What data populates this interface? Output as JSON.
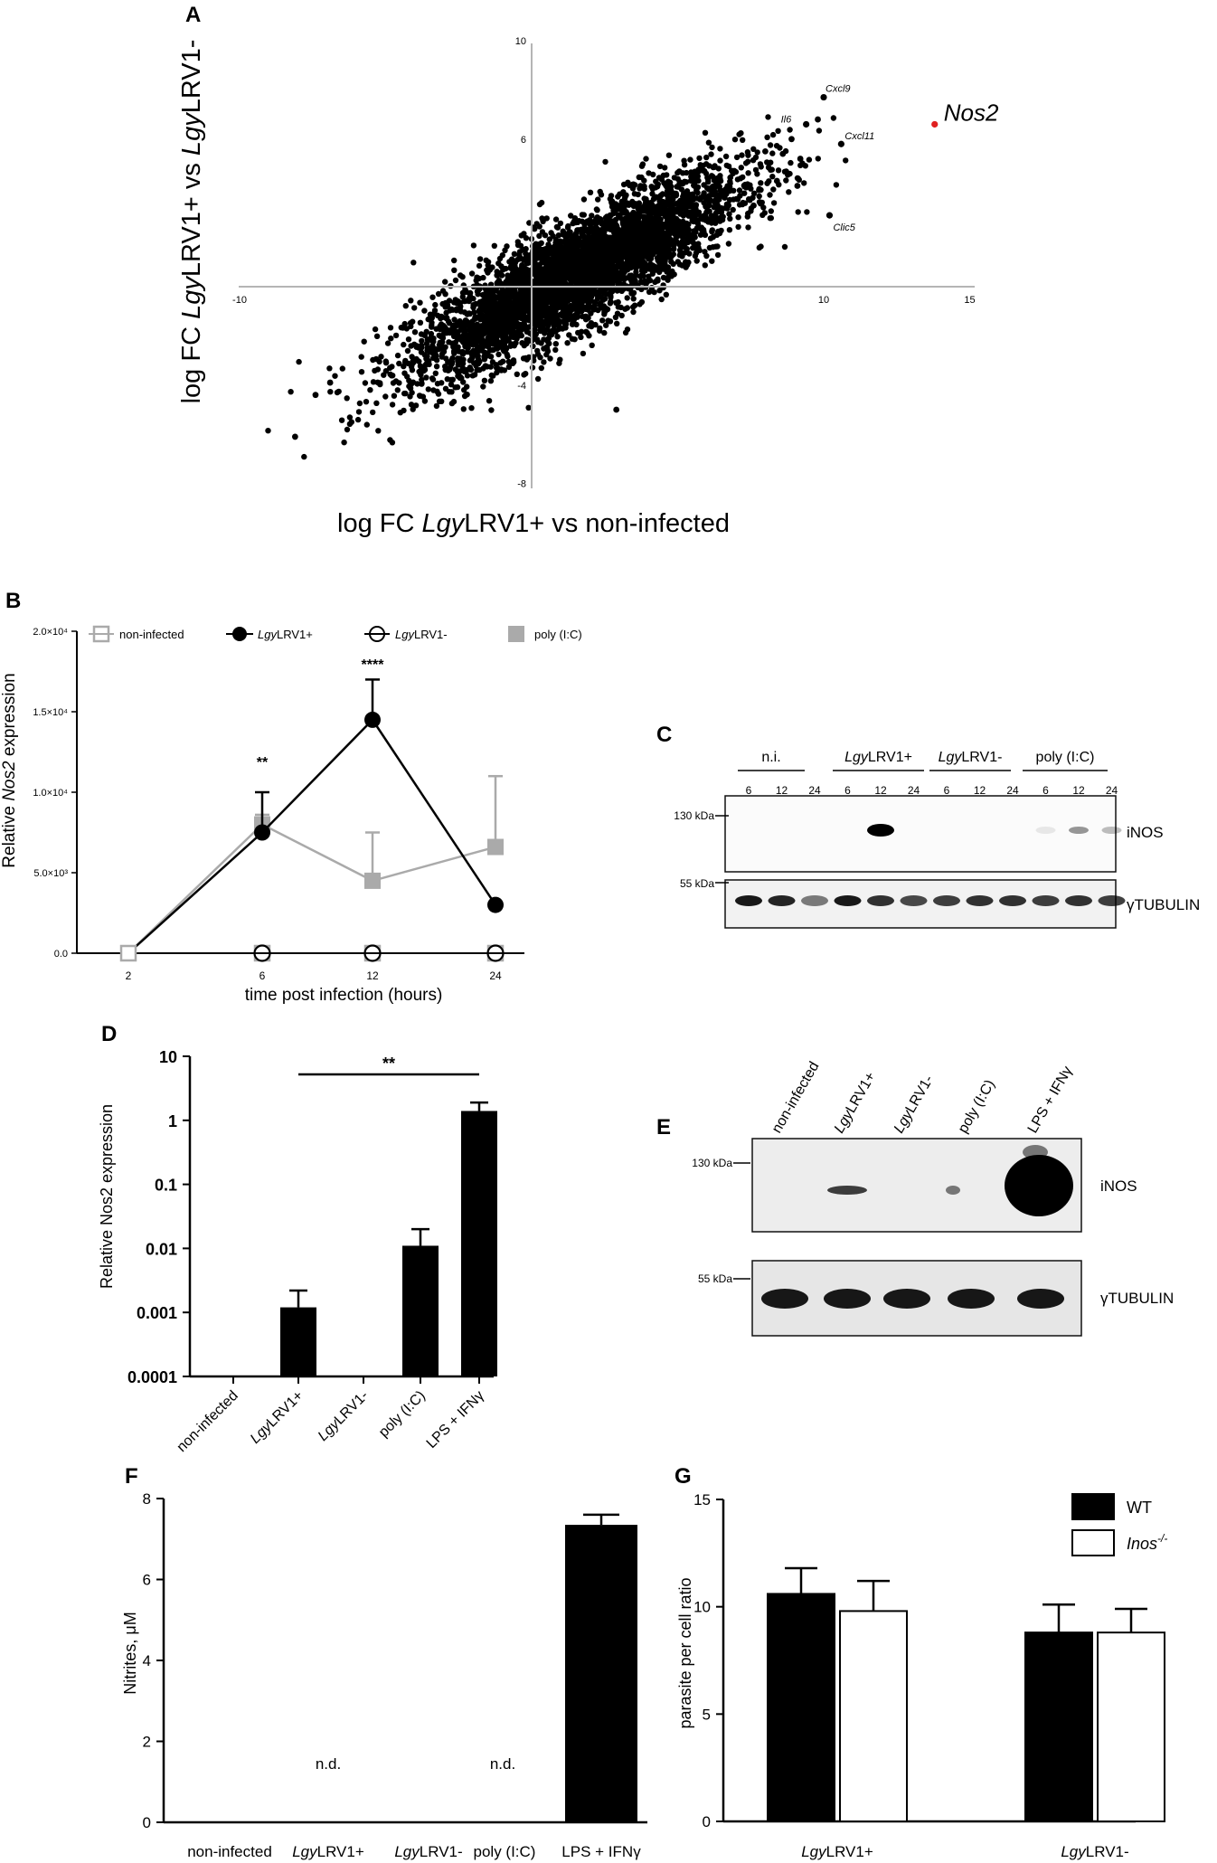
{
  "panel_labels": {
    "A": "A",
    "B": "B",
    "C": "C",
    "D": "D",
    "E": "E",
    "F": "F",
    "G": "G"
  },
  "chart_data": [
    {
      "panel": "A",
      "type": "scatter",
      "xlabel": "log FC LgyLRV1+ vs non-infected",
      "ylabel": "log FC LgyLRV1+ vs LgyLRV1-",
      "xlim": [
        -10,
        15
      ],
      "ylim": [
        -8,
        10
      ],
      "x_ticks": [
        -10,
        10,
        15
      ],
      "y_ticks": [
        -8,
        -4,
        6,
        10
      ],
      "cloud": {
        "slope": 0.62,
        "center": [
          1.5,
          0.5
        ],
        "spread_x": 2.8,
        "spread_resid": 1.1,
        "count": 4200
      },
      "labeled_points": [
        {
          "label": "Nos2",
          "x": 13.8,
          "y": 6.6,
          "color": "#e02020"
        },
        {
          "label": "Cxcl9",
          "x": 10.0,
          "y": 7.7,
          "color": "#000000"
        },
        {
          "label": "Il6",
          "x": 9.4,
          "y": 6.6,
          "color": "#000000"
        },
        {
          "label": "Cxcl11",
          "x": 10.6,
          "y": 5.8,
          "color": "#000000"
        },
        {
          "label": "Clic5",
          "x": 10.2,
          "y": 2.9,
          "color": "#000000"
        }
      ],
      "outliers": [
        {
          "x": -8.1,
          "y": -6.1
        },
        {
          "x": -7.4,
          "y": -4.4
        },
        {
          "x": -6.9,
          "y": -3.9
        },
        {
          "x": 2.9,
          "y": -5.0
        },
        {
          "x": 9.8,
          "y": 6.8
        },
        {
          "x": 8.6,
          "y": 5.4
        },
        {
          "x": 8.0,
          "y": 5.5
        },
        {
          "x": 8.4,
          "y": 4.3
        },
        {
          "x": 7.6,
          "y": 3.3
        },
        {
          "x": 9.2,
          "y": 5.2
        },
        {
          "x": 9.1,
          "y": 4.1
        },
        {
          "x": 8.9,
          "y": 6.0
        }
      ]
    },
    {
      "panel": "B",
      "type": "line",
      "xlabel": "time post infection (hours)",
      "ylabel": "Relative Nos2 expression",
      "categories": [
        "2",
        "6",
        "12",
        "24"
      ],
      "ylim": [
        0,
        20000
      ],
      "y_ticks": [
        0,
        5000,
        10000,
        15000,
        20000
      ],
      "y_tick_labels": [
        "0.0",
        "5.0×10³",
        "1.0×10⁴",
        "1.5×10⁴",
        "2.0×10⁴"
      ],
      "series": [
        {
          "name": "non-infected",
          "values": [
            0,
            0,
            0,
            0
          ],
          "err": [
            0,
            0,
            0,
            0
          ],
          "color": "#aaaaaa",
          "marker": "open-square-gray"
        },
        {
          "name": "LgyLRV1+",
          "values": [
            0,
            7500,
            14500,
            3000
          ],
          "err": [
            0,
            2500,
            2500,
            0
          ],
          "color": "#000000",
          "marker": "filled-circle"
        },
        {
          "name": "LgyLRV1-",
          "values": [
            0,
            0,
            0,
            0
          ],
          "err": [
            0,
            0,
            0,
            0
          ],
          "color": "#000000",
          "marker": "open-circle"
        },
        {
          "name": "poly (I:C)",
          "values": [
            0,
            8000,
            4500,
            6600
          ],
          "err": [
            0,
            600,
            3000,
            4400
          ],
          "color": "#aaaaaa",
          "marker": "filled-square"
        }
      ],
      "annotations": [
        {
          "category": "6",
          "text": "**"
        },
        {
          "category": "12",
          "text": "****"
        }
      ]
    },
    {
      "panel": "D",
      "type": "bar",
      "ylabel": "Relative Nos2 expression",
      "yscale": "log",
      "ylim": [
        0.0001,
        10
      ],
      "y_ticks": [
        0.0001,
        0.001,
        0.01,
        0.1,
        1,
        10
      ],
      "y_tick_labels": [
        "0.0001",
        "0.001",
        "0.01",
        "0.1",
        "1",
        "10"
      ],
      "categories": [
        "non-infected",
        "LgyLRV1+",
        "LgyLRV1-",
        "poly (I:C)",
        "LPS + IFNγ"
      ],
      "values": [
        null,
        0.0012,
        null,
        0.011,
        1.4
      ],
      "err": [
        null,
        0.001,
        null,
        0.009,
        0.5
      ],
      "significance": {
        "from": "LgyLRV1+",
        "to": "LPS + IFNγ",
        "text": "**"
      }
    },
    {
      "panel": "F",
      "type": "bar",
      "ylabel": "Nitrites, μM",
      "ylim": [
        0,
        8
      ],
      "y_ticks": [
        0,
        2,
        4,
        6,
        8
      ],
      "categories": [
        "non-infected",
        "LgyLRV1+",
        "LgyLRV1-",
        "poly (I:C)",
        "LPS + IFNγ"
      ],
      "values": [
        0,
        0,
        0,
        0,
        7.35
      ],
      "err": [
        0,
        0,
        0,
        0,
        0.25
      ],
      "bar_annotations": [
        {
          "category": "LgyLRV1+",
          "text": "n.d."
        },
        {
          "category": "poly (I:C)",
          "text": "n.d."
        }
      ]
    },
    {
      "panel": "G",
      "type": "bar",
      "ylabel": "parasite per cell ratio",
      "ylim": [
        0,
        15
      ],
      "y_ticks": [
        0,
        5,
        10,
        15
      ],
      "categories": [
        "LgyLRV1+",
        "LgyLRV1-"
      ],
      "series": [
        {
          "name": "WT",
          "values": [
            10.6,
            8.8
          ],
          "err": [
            1.2,
            1.3
          ],
          "fill": "#000000"
        },
        {
          "name": "Inos-/-",
          "values": [
            9.8,
            8.8
          ],
          "err": [
            1.4,
            1.1
          ],
          "fill": "#ffffff"
        }
      ],
      "legend": "top-right"
    }
  ],
  "blot_c": {
    "groups": [
      "n.i.",
      "LgyLRV1+",
      "LgyLRV1-",
      "poly (I:C)"
    ],
    "timepoints": [
      "6",
      "12",
      "24"
    ],
    "markers": [
      "130 kDa",
      "55 kDa"
    ],
    "rows": [
      "iNOS",
      "γTUBULIN"
    ],
    "inos_intensity": [
      0,
      0,
      0,
      0,
      0.95,
      0,
      0,
      0,
      0,
      0.03,
      0.35,
      0.2
    ],
    "tubulin_intensity": [
      0.9,
      0.85,
      0.5,
      0.9,
      0.8,
      0.7,
      0.75,
      0.8,
      0.8,
      0.75,
      0.8,
      0.75
    ]
  },
  "blot_e": {
    "lanes": [
      "non-infected",
      "LgyLRV1+",
      "LgyLRV1-",
      "poly (I:C)",
      "LPS + IFNγ"
    ],
    "markers": [
      "130 kDa",
      "55 kDa"
    ],
    "rows": [
      "iNOS",
      "γTUBULIN"
    ],
    "inos_intensity": [
      0,
      0.55,
      0,
      0.3,
      1.0
    ],
    "tubulin_intensity": [
      0.9,
      0.9,
      0.9,
      0.9,
      0.9
    ]
  }
}
